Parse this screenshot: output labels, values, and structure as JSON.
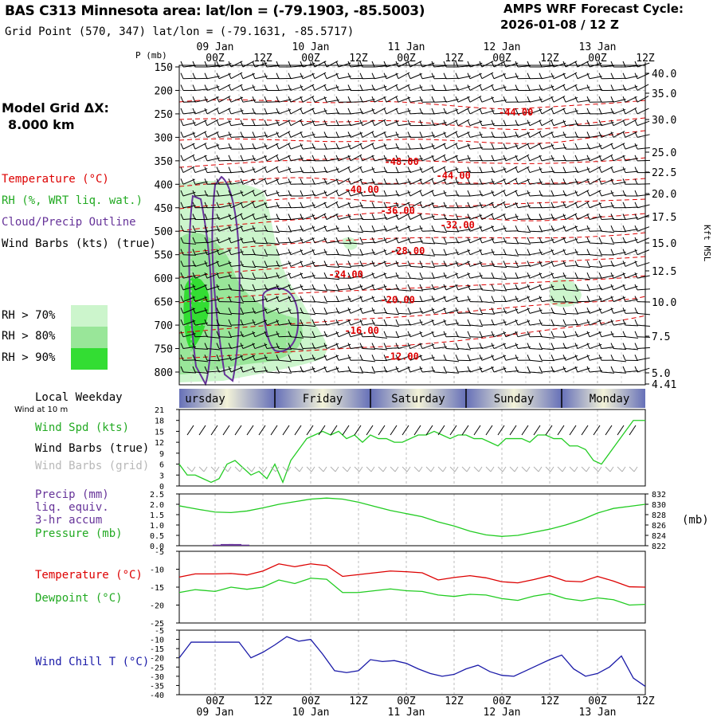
{
  "header": {
    "title": "BAS C313 Minnesota area:  lat/lon = (-79.1903, -85.5003)",
    "subtitle": "Grid Point (570, 347) lat/lon = (-79.1631, -85.5717)",
    "forecast_line1": "AMPS WRF Forecast Cycle:",
    "forecast_line2": "2026-01-08 / 12  Z"
  },
  "left_labels": {
    "grid_title": "Model Grid ΔX:",
    "grid_value": "8.000 km",
    "temperature": "Temperature (°C)",
    "rh": "RH (%, WRT liq. wat.)",
    "cloud": "Cloud/Precip Outline",
    "wind_barbs": "Wind Barbs (kts) (true)",
    "rh70": "RH > 70%",
    "rh80": "RH > 80%",
    "rh90": "RH > 90%",
    "local_weekday": "Local Weekday",
    "wind_at_10m": "Wind at 10 m",
    "wind_spd": "Wind Spd (kts)",
    "wind_barbs_true": "Wind Barbs (true)",
    "wind_barbs_grid": "Wind Barbs (grid)",
    "precip1": "Precip (mm)",
    "precip2": "liq. equiv.",
    "precip3": "3-hr accum",
    "pressure": "Pressure (mb)",
    "temp2": "Temperature (°C)",
    "dewpoint": "Dewpoint (°C)",
    "windchill": "Wind Chill T (°C)"
  },
  "colors": {
    "temperature": "#dd0000",
    "green": "#22cc22",
    "purple": "#663399",
    "blue": "#1a1aa8",
    "rh70": "#ccf5cc",
    "rh80": "#99e699",
    "rh90": "#33dd33",
    "weekday_band": "#6670b8",
    "weekday_light": "#f2f2d8"
  },
  "chart_data": {
    "type": "line",
    "time_axis": {
      "top_ticks": [
        "00Z",
        "12Z",
        "00Z",
        "12Z",
        "00Z",
        "12Z",
        "00Z",
        "12Z",
        "00Z",
        "12Z"
      ],
      "top_dates": [
        "09 Jan",
        "10 Jan",
        "11 Jan",
        "12 Jan",
        "13 Jan"
      ],
      "bottom_ticks": [
        "00Z",
        "12Z",
        "00Z",
        "12Z",
        "00Z",
        "12Z",
        "00Z",
        "12Z",
        "00Z",
        "12Z"
      ],
      "bottom_dates": [
        "09 Jan",
        "10 Jan",
        "11 Jan",
        "12 Jan",
        "13 Jan"
      ],
      "hours": [
        0,
        12,
        24,
        36,
        48,
        60,
        72,
        84,
        96,
        108
      ],
      "range_hours": [
        -9,
        108
      ]
    },
    "sounding": {
      "ylabel": "P (mb)",
      "pressure_ticks": [
        "150",
        "200",
        "250",
        "300",
        "350",
        "400",
        "450",
        "500",
        "550",
        "600",
        "650",
        "700",
        "750",
        "800"
      ],
      "pressure_values": [
        150,
        200,
        250,
        300,
        350,
        400,
        450,
        500,
        550,
        600,
        650,
        700,
        750,
        800
      ],
      "height_ticks": [
        "40.0",
        "35.0",
        "30.0",
        "25.0",
        "22.5",
        "20.0",
        "17.5",
        "15.0",
        "12.5",
        "10.0",
        "7.5",
        "5.0",
        "4.41"
      ],
      "height_label": "Kft MSL",
      "temperature_labels": [
        {
          "text": "-44.00",
          "t": 71.2,
          "p": 245
        },
        {
          "text": "-48.00",
          "t": 42.5,
          "p": 350
        },
        {
          "text": "-44.00",
          "t": 55.5,
          "p": 380
        },
        {
          "text": "-40.00",
          "t": 32.5,
          "p": 410
        },
        {
          "text": "-36.00",
          "t": 41.5,
          "p": 455
        },
        {
          "text": "-32.00",
          "t": 56.5,
          "p": 485
        },
        {
          "text": "-28.00",
          "t": 44,
          "p": 540
        },
        {
          "text": "-24.00",
          "t": 28.5,
          "p": 590
        },
        {
          "text": "-20.00",
          "t": 41.5,
          "p": 645
        },
        {
          "text": "-16.00",
          "t": 32.5,
          "p": 710
        },
        {
          "text": "-12.00",
          "t": 42.5,
          "p": 765
        }
      ]
    },
    "weekday": {
      "days": [
        "ursday",
        "Friday",
        "Saturday",
        "Sunday",
        "Monday"
      ],
      "boundaries_hours": [
        15,
        39,
        63,
        87
      ],
      "day_centers_hours": [
        -2.5,
        27,
        51,
        75,
        99
      ]
    },
    "wind": {
      "ylabel": "Wind Spd (kts)",
      "ylim": [
        0,
        21
      ],
      "ticks": [
        "21",
        "18",
        "15",
        "12",
        "9",
        "6",
        "3",
        "0"
      ],
      "tick_values": [
        21,
        18,
        15,
        12,
        9,
        6,
        3,
        0
      ],
      "x": [
        -9,
        -7,
        -5,
        -3,
        -1,
        1,
        3,
        5,
        7,
        9,
        11,
        13,
        15,
        17,
        19,
        21,
        23,
        25,
        27,
        29,
        31,
        33,
        35,
        37,
        39,
        41,
        43,
        45,
        47,
        49,
        51,
        53,
        55,
        57,
        59,
        61,
        63,
        65,
        67,
        69,
        71,
        73,
        75,
        77,
        79,
        81,
        83,
        85,
        87,
        89,
        91,
        93,
        95,
        97,
        99,
        101,
        103,
        105,
        107,
        108
      ],
      "speed": [
        6,
        3,
        3,
        2,
        1,
        2,
        6,
        7,
        5,
        3,
        4,
        2,
        6,
        1,
        7,
        10,
        13,
        14,
        15,
        14,
        15,
        13,
        14,
        12,
        14,
        13,
        13,
        12,
        12,
        13,
        14,
        14,
        15,
        14,
        13,
        14,
        14,
        13,
        13,
        12,
        11,
        13,
        13,
        13,
        12,
        14,
        14,
        13,
        13,
        11,
        11,
        10,
        7,
        6,
        9,
        12,
        15,
        18,
        18,
        18
      ]
    },
    "pressure": {
      "ylabel_left": "Precip (mm)",
      "ylabel_right": "(mb)",
      "precip_ticks": [
        "2.5",
        "2.0",
        "1.5",
        "1.0",
        "0.5",
        "0.0"
      ],
      "precip_values": [
        2.5,
        2.0,
        1.5,
        1.0,
        0.5,
        0.0
      ],
      "pressure_ticks": [
        "832",
        "830",
        "828",
        "826",
        "824",
        "822"
      ],
      "pressure_tick_values": [
        832,
        830,
        828,
        826,
        824,
        822
      ],
      "ylim_mb": [
        822,
        832
      ],
      "x": [
        -9,
        -4,
        0,
        4,
        8,
        12,
        16,
        20,
        24,
        28,
        32,
        36,
        40,
        44,
        48,
        52,
        56,
        60,
        64,
        68,
        72,
        76,
        80,
        84,
        88,
        92,
        96,
        100,
        104,
        108
      ],
      "mb": [
        829.7,
        829.0,
        828.5,
        828.4,
        828.7,
        829.3,
        830.0,
        830.5,
        831.0,
        831.2,
        831.0,
        830.4,
        829.6,
        828.8,
        828.2,
        827.6,
        826.6,
        825.8,
        824.8,
        824.1,
        823.8,
        824.0,
        824.6,
        825.2,
        826.0,
        827.0,
        828.3,
        829.2,
        829.6,
        830.0
      ],
      "precip_x": [
        1,
        3,
        5,
        7
      ],
      "precip": [
        0.05,
        0.08,
        0.08,
        0.05
      ]
    },
    "temps": {
      "ylabel": "Temperature (°C)",
      "ylim": [
        -25,
        -5
      ],
      "ticks": [
        "-5",
        "-10",
        "-15",
        "-20",
        "-25"
      ],
      "tick_values": [
        -5,
        -10,
        -15,
        -20,
        -25
      ],
      "x": [
        -9,
        -5,
        0,
        4,
        8,
        12,
        16,
        20,
        24,
        28,
        32,
        36,
        40,
        44,
        48,
        52,
        56,
        60,
        64,
        68,
        72,
        76,
        80,
        84,
        88,
        92,
        96,
        100,
        104,
        108
      ],
      "temperature": [
        -12.2,
        -11.3,
        -11.3,
        -11.2,
        -11.6,
        -10.5,
        -8.5,
        -9.3,
        -8.5,
        -9.0,
        -12.0,
        -11.5,
        -11.0,
        -10.5,
        -10.7,
        -11.0,
        -13.0,
        -12.3,
        -11.8,
        -12.4,
        -13.5,
        -13.8,
        -12.9,
        -11.8,
        -13.3,
        -13.5,
        -12.0,
        -13.3,
        -14.9,
        -15.0
      ],
      "dewpoint": [
        -16.5,
        -15.7,
        -16.2,
        -15.0,
        -15.6,
        -15.0,
        -13.0,
        -14.0,
        -12.5,
        -12.8,
        -16.5,
        -16.5,
        -16.0,
        -15.5,
        -16.0,
        -16.2,
        -17.2,
        -17.6,
        -17.0,
        -17.2,
        -18.2,
        -18.7,
        -17.5,
        -16.8,
        -18.2,
        -18.8,
        -18.0,
        -18.5,
        -20.0,
        -19.8
      ]
    },
    "windchill": {
      "ylabel": "Wind Chill T (°C)",
      "ylim": [
        -40,
        -5
      ],
      "ticks": [
        "-5",
        "-10",
        "-15",
        "-20",
        "-25",
        "-30",
        "-35",
        "-40"
      ],
      "tick_values": [
        -5,
        -10,
        -15,
        -20,
        -25,
        -30,
        -35,
        -40
      ],
      "x": [
        -9,
        -6,
        -3,
        0,
        3,
        6,
        9,
        12,
        15,
        18,
        21,
        24,
        27,
        30,
        33,
        36,
        39,
        42,
        45,
        48,
        51,
        54,
        57,
        60,
        63,
        66,
        69,
        72,
        75,
        78,
        81,
        84,
        87,
        90,
        93,
        96,
        99,
        102,
        105,
        108
      ],
      "values": [
        -20,
        -11.5,
        -11.5,
        -11.5,
        -11.5,
        -11.5,
        -20,
        -17,
        -13,
        -8.5,
        -11,
        -10,
        -18,
        -27,
        -28,
        -27,
        -21,
        -22,
        -21.5,
        -23,
        -26,
        -28.5,
        -30,
        -29,
        -26,
        -24,
        -27.5,
        -29.5,
        -30,
        -27,
        -24,
        -21,
        -18.5,
        -26,
        -30,
        -28.5,
        -25,
        -19,
        -31,
        -35.5
      ]
    }
  }
}
